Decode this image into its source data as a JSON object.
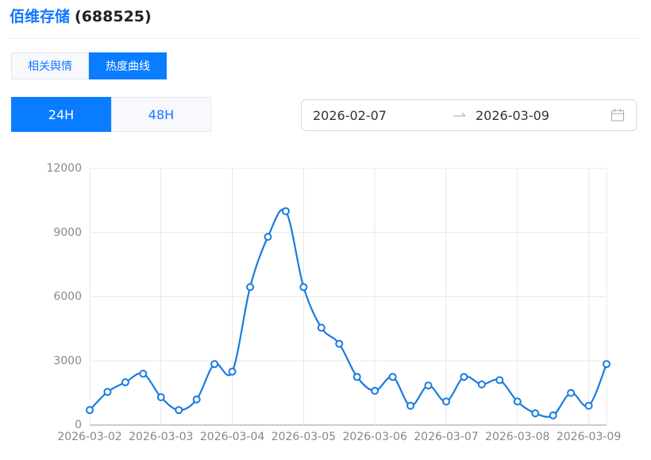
{
  "header": {
    "name": "佰维存储",
    "code": "(688525)"
  },
  "tabs": [
    "相关舆情",
    "热度曲线"
  ],
  "range_buttons": [
    "24H",
    "48H"
  ],
  "date_range": {
    "start": "2026-02-07",
    "end": "2026-03-09"
  },
  "chart_data": {
    "type": "line",
    "categories": [
      "2026-03-02",
      null,
      null,
      null,
      "2026-03-03",
      null,
      null,
      null,
      "2026-03-04",
      null,
      null,
      null,
      "2026-03-05",
      null,
      null,
      null,
      "2026-03-06",
      null,
      null,
      null,
      "2026-03-07",
      null,
      null,
      null,
      "2026-03-08",
      null,
      null,
      null,
      "2026-03-09",
      null
    ],
    "values": [
      700,
      1550,
      2000,
      2400,
      1300,
      700,
      1200,
      2850,
      2500,
      6450,
      8800,
      10000,
      6450,
      4550,
      3800,
      2250,
      1600,
      2250,
      900,
      1850,
      1100,
      2250,
      1900,
      2100,
      1100,
      550,
      450,
      1500,
      900,
      2850
    ],
    "color": "#1a7be0",
    "ylim": [
      0,
      12000
    ],
    "yticks": [
      0,
      3000,
      6000,
      9000,
      12000
    ],
    "grid": true
  }
}
